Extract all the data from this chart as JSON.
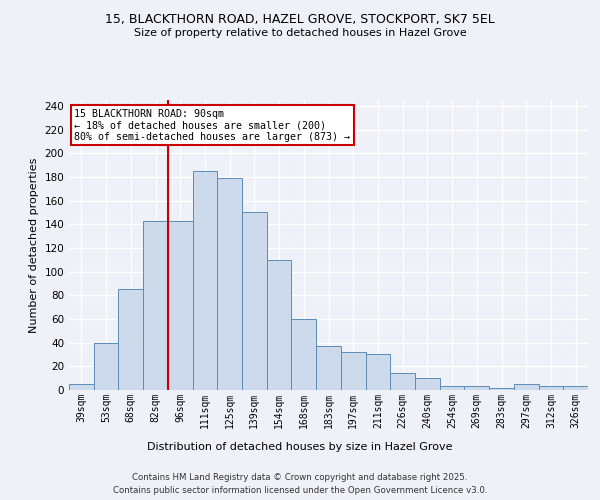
{
  "title1": "15, BLACKTHORN ROAD, HAZEL GROVE, STOCKPORT, SK7 5EL",
  "title2": "Size of property relative to detached houses in Hazel Grove",
  "xlabel": "Distribution of detached houses by size in Hazel Grove",
  "ylabel": "Number of detached properties",
  "categories": [
    "39sqm",
    "53sqm",
    "68sqm",
    "82sqm",
    "96sqm",
    "111sqm",
    "125sqm",
    "139sqm",
    "154sqm",
    "168sqm",
    "183sqm",
    "197sqm",
    "211sqm",
    "226sqm",
    "240sqm",
    "254sqm",
    "269sqm",
    "283sqm",
    "297sqm",
    "312sqm",
    "326sqm"
  ],
  "values": [
    5,
    40,
    85,
    143,
    143,
    185,
    179,
    150,
    110,
    60,
    37,
    32,
    30,
    14,
    10,
    3,
    3,
    2,
    5,
    3,
    3
  ],
  "bar_color": "#ccdaeb",
  "bar_edge_color": "#5b8db8",
  "vline_x_index": 3.5,
  "vline_color": "#cc0000",
  "annotation_title": "15 BLACKTHORN ROAD: 90sqm",
  "annotation_line1": "← 18% of detached houses are smaller (200)",
  "annotation_line2": "80% of semi-detached houses are larger (873) →",
  "annotation_box_color": "#cc0000",
  "yticks": [
    0,
    20,
    40,
    60,
    80,
    100,
    120,
    140,
    160,
    180,
    200,
    220,
    240
  ],
  "ylim": [
    0,
    245
  ],
  "footer1": "Contains HM Land Registry data © Crown copyright and database right 2025.",
  "footer2": "Contains public sector information licensed under the Open Government Licence v3.0.",
  "background_color": "#eef2f8",
  "grid_color": "#ffffff"
}
